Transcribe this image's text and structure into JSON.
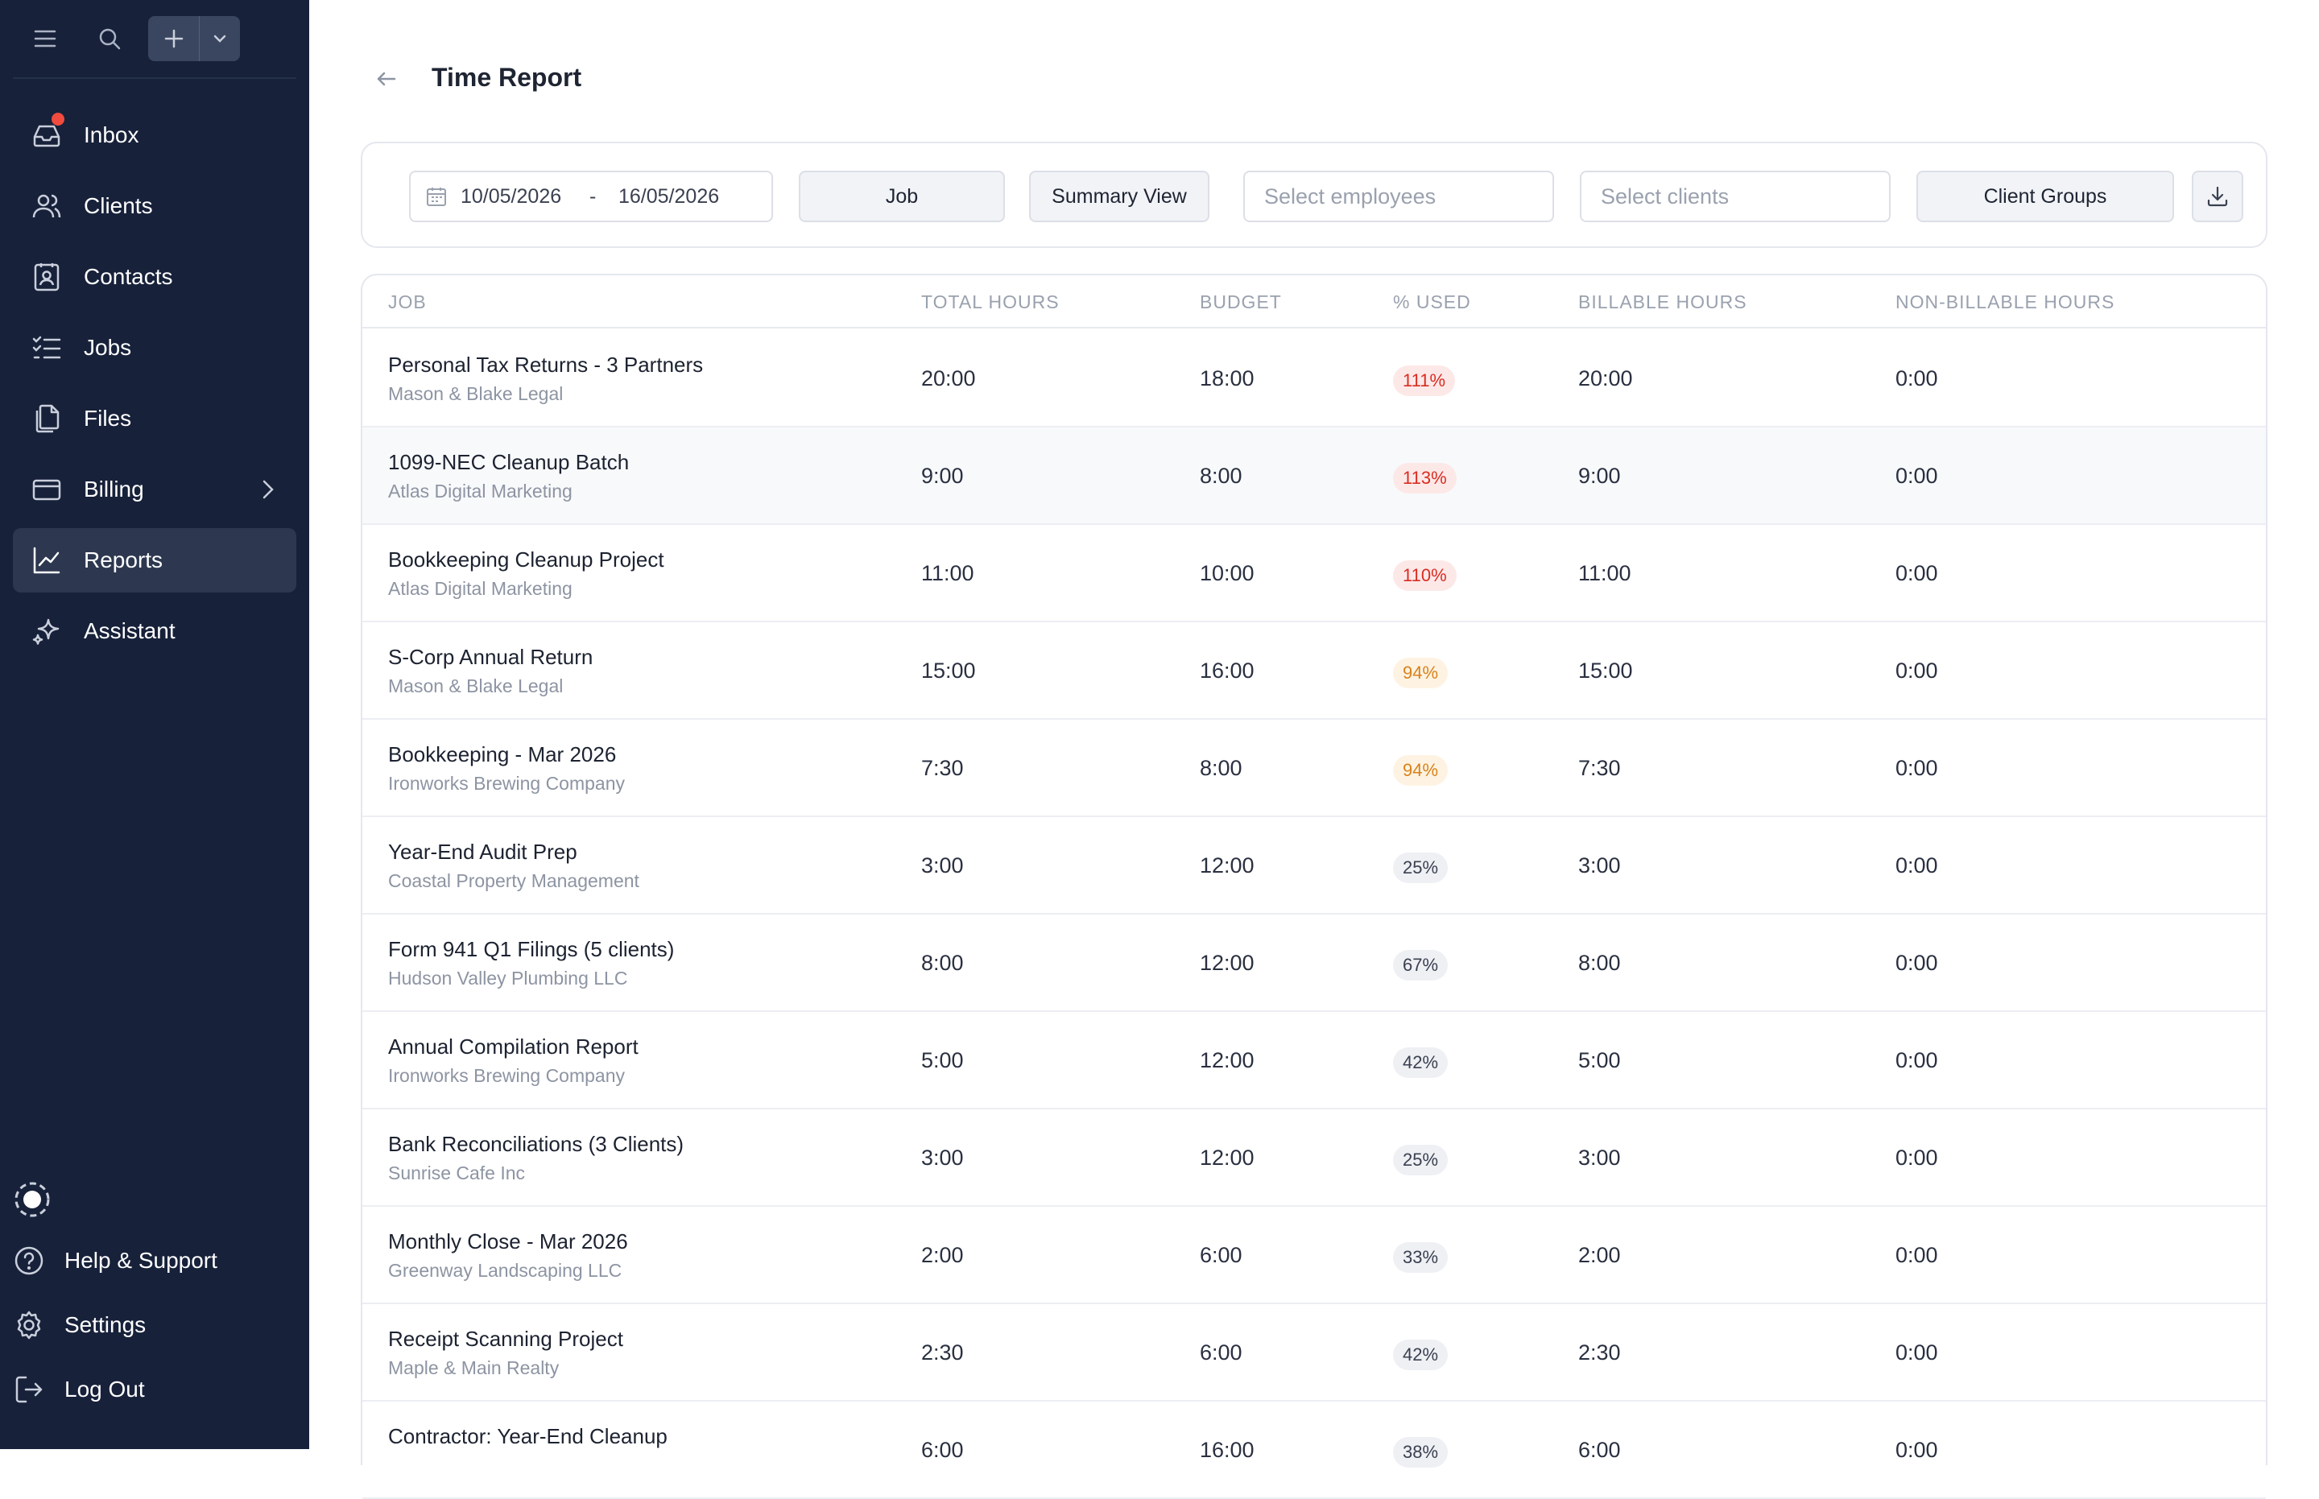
{
  "sidebar": {
    "nav": [
      {
        "label": "Inbox",
        "icon": "inbox-icon"
      },
      {
        "label": "Clients",
        "icon": "users-icon"
      },
      {
        "label": "Contacts",
        "icon": "contact-card-icon"
      },
      {
        "label": "Jobs",
        "icon": "checklist-icon"
      },
      {
        "label": "Files",
        "icon": "files-icon"
      },
      {
        "label": "Billing",
        "icon": "credit-card-icon"
      },
      {
        "label": "Reports",
        "icon": "line-chart-icon"
      },
      {
        "label": "Assistant",
        "icon": "sparkles-icon"
      }
    ],
    "active": "Reports",
    "bottom": [
      {
        "label": "Help & Support",
        "icon": "help-circle-icon"
      },
      {
        "label": "Settings",
        "icon": "gear-icon"
      },
      {
        "label": "Log Out",
        "icon": "logout-icon"
      }
    ]
  },
  "header": {
    "title": "Time Report"
  },
  "filters": {
    "date_from": "10/05/2026",
    "date_separator": "-",
    "date_to": "16/05/2026",
    "group_by": "Job",
    "view": "Summary View",
    "employees_placeholder": "Select employees",
    "clients_placeholder": "Select clients",
    "client_groups": "Client Groups"
  },
  "table": {
    "columns": [
      "JOB",
      "TOTAL HOURS",
      "BUDGET",
      "% USED",
      "BILLABLE HOURS",
      "NON-BILLABLE HOURS"
    ],
    "rows": [
      {
        "job": "Personal Tax Returns - 3 Partners",
        "client": "Mason & Blake Legal",
        "total": "20:00",
        "budget": "18:00",
        "used": "111%",
        "billable": "20:00",
        "nonbillable": "0:00"
      },
      {
        "job": "1099-NEC Cleanup Batch",
        "client": "Atlas Digital Marketing",
        "total": "9:00",
        "budget": "8:00",
        "used": "113%",
        "billable": "9:00",
        "nonbillable": "0:00"
      },
      {
        "job": "Bookkeeping Cleanup Project",
        "client": "Atlas Digital Marketing",
        "total": "11:00",
        "budget": "10:00",
        "used": "110%",
        "billable": "11:00",
        "nonbillable": "0:00"
      },
      {
        "job": "S-Corp Annual Return",
        "client": "Mason & Blake Legal",
        "total": "15:00",
        "budget": "16:00",
        "used": "94%",
        "billable": "15:00",
        "nonbillable": "0:00"
      },
      {
        "job": "Bookkeeping - Mar 2026",
        "client": "Ironworks Brewing Company",
        "total": "7:30",
        "budget": "8:00",
        "used": "94%",
        "billable": "7:30",
        "nonbillable": "0:00"
      },
      {
        "job": "Year-End Audit Prep",
        "client": "Coastal Property Management",
        "total": "3:00",
        "budget": "12:00",
        "used": "25%",
        "billable": "3:00",
        "nonbillable": "0:00"
      },
      {
        "job": "Form 941 Q1 Filings (5 clients)",
        "client": "Hudson Valley Plumbing LLC",
        "total": "8:00",
        "budget": "12:00",
        "used": "67%",
        "billable": "8:00",
        "nonbillable": "0:00"
      },
      {
        "job": "Annual Compilation Report",
        "client": "Ironworks Brewing Company",
        "total": "5:00",
        "budget": "12:00",
        "used": "42%",
        "billable": "5:00",
        "nonbillable": "0:00"
      },
      {
        "job": "Bank Reconciliations (3 Clients)",
        "client": "Sunrise Cafe Inc",
        "total": "3:00",
        "budget": "12:00",
        "used": "25%",
        "billable": "3:00",
        "nonbillable": "0:00"
      },
      {
        "job": "Monthly Close - Mar 2026",
        "client": "Greenway Landscaping LLC",
        "total": "2:00",
        "budget": "6:00",
        "used": "33%",
        "billable": "2:00",
        "nonbillable": "0:00"
      },
      {
        "job": "Receipt Scanning Project",
        "client": "Maple & Main Realty",
        "total": "2:30",
        "budget": "6:00",
        "used": "42%",
        "billable": "2:30",
        "nonbillable": "0:00"
      },
      {
        "job": "Contractor: Year-End Cleanup",
        "client": "",
        "total": "6:00",
        "budget": "16:00",
        "used": "38%",
        "billable": "6:00",
        "nonbillable": "0:00"
      }
    ]
  },
  "colors": {
    "sidebar_bg": "#17213a",
    "active_nav_bg": "#2d3850",
    "notification_dot": "#f04b3e",
    "over_budget_pill_bg": "#fde8e8",
    "over_budget_pill_text": "#d92d20",
    "warning_pill_bg": "#fef3e2",
    "warning_pill_text": "#d9821b",
    "normal_pill_bg": "#eef0f4",
    "normal_pill_text": "#3a4050"
  }
}
